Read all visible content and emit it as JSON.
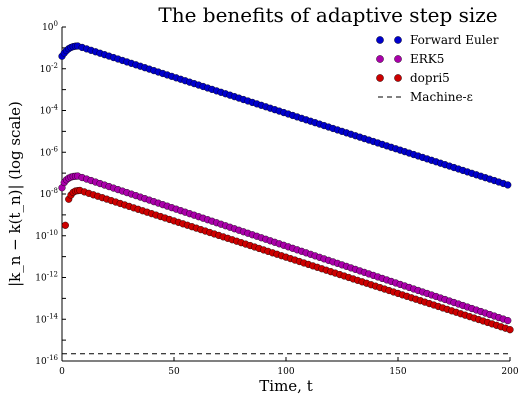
{
  "chart_data": {
    "type": "scatter",
    "title": "The benefits of adaptive step size",
    "xlabel": "Time, t",
    "ylabel": "|k_n − k(t_n)| (log scale)",
    "xlim": [
      0,
      200
    ],
    "ylim_log10": [
      -16,
      0
    ],
    "yscale": "log",
    "x_ticks": [
      "0",
      "50",
      "100",
      "150",
      "200"
    ],
    "y_ticks": [
      {
        "base": "10",
        "exp": "0",
        "value": 0
      },
      {
        "base": "10",
        "exp": "-2",
        "value": -2
      },
      {
        "base": "10",
        "exp": "-4",
        "value": -4
      },
      {
        "base": "10",
        "exp": "-6",
        "value": -6
      },
      {
        "base": "10",
        "exp": "-8",
        "value": -8
      },
      {
        "base": "10",
        "exp": "-10",
        "value": -10
      },
      {
        "base": "10",
        "exp": "-12",
        "value": -12
      },
      {
        "base": "10",
        "exp": "-14",
        "value": -14
      },
      {
        "base": "10",
        "exp": "-16",
        "value": -16
      }
    ],
    "legend_position": "top-right",
    "series": [
      {
        "name": "Forward Euler",
        "color": "#0000cc",
        "marker": "circle",
        "points_log10": [
          [
            0,
            -1.4
          ],
          [
            1,
            -1.25
          ],
          [
            2,
            -1.13
          ],
          [
            3,
            -1.04
          ],
          [
            4,
            -0.98
          ],
          [
            5,
            -0.94
          ],
          [
            6,
            -0.92
          ],
          [
            7,
            -0.91
          ]
        ],
        "decay": {
          "x_start": 7,
          "x_end": 200,
          "step": 2,
          "y_start_log10": -0.91,
          "y_end_log10": -7.6
        }
      },
      {
        "name": "ERK5",
        "color": "#aa00aa",
        "marker": "circle",
        "points_log10": [
          [
            0,
            -7.7
          ],
          [
            1,
            -7.45
          ],
          [
            2,
            -7.32
          ],
          [
            3,
            -7.24
          ],
          [
            4,
            -7.19
          ],
          [
            5,
            -7.16
          ],
          [
            6,
            -7.15
          ],
          [
            7,
            -7.14
          ]
        ],
        "decay": {
          "x_start": 7,
          "x_end": 200,
          "step": 2,
          "y_start_log10": -7.14,
          "y_end_log10": -14.1
        }
      },
      {
        "name": "dopri5",
        "color": "#cc0000",
        "marker": "circle",
        "points_log10": [
          [
            1.5,
            -9.5
          ],
          [
            3,
            -8.25
          ],
          [
            4,
            -8.05
          ],
          [
            5,
            -7.92
          ],
          [
            6,
            -7.86
          ],
          [
            7,
            -7.84
          ],
          [
            8,
            -7.83
          ]
        ],
        "decay": {
          "x_start": 8,
          "x_end": 200,
          "step": 2,
          "y_start_log10": -7.83,
          "y_end_log10": -14.5
        }
      },
      {
        "name": "Machine-ε",
        "color": "#000000",
        "marker": "none",
        "line": "dashed",
        "value_log10": -15.65
      }
    ]
  }
}
